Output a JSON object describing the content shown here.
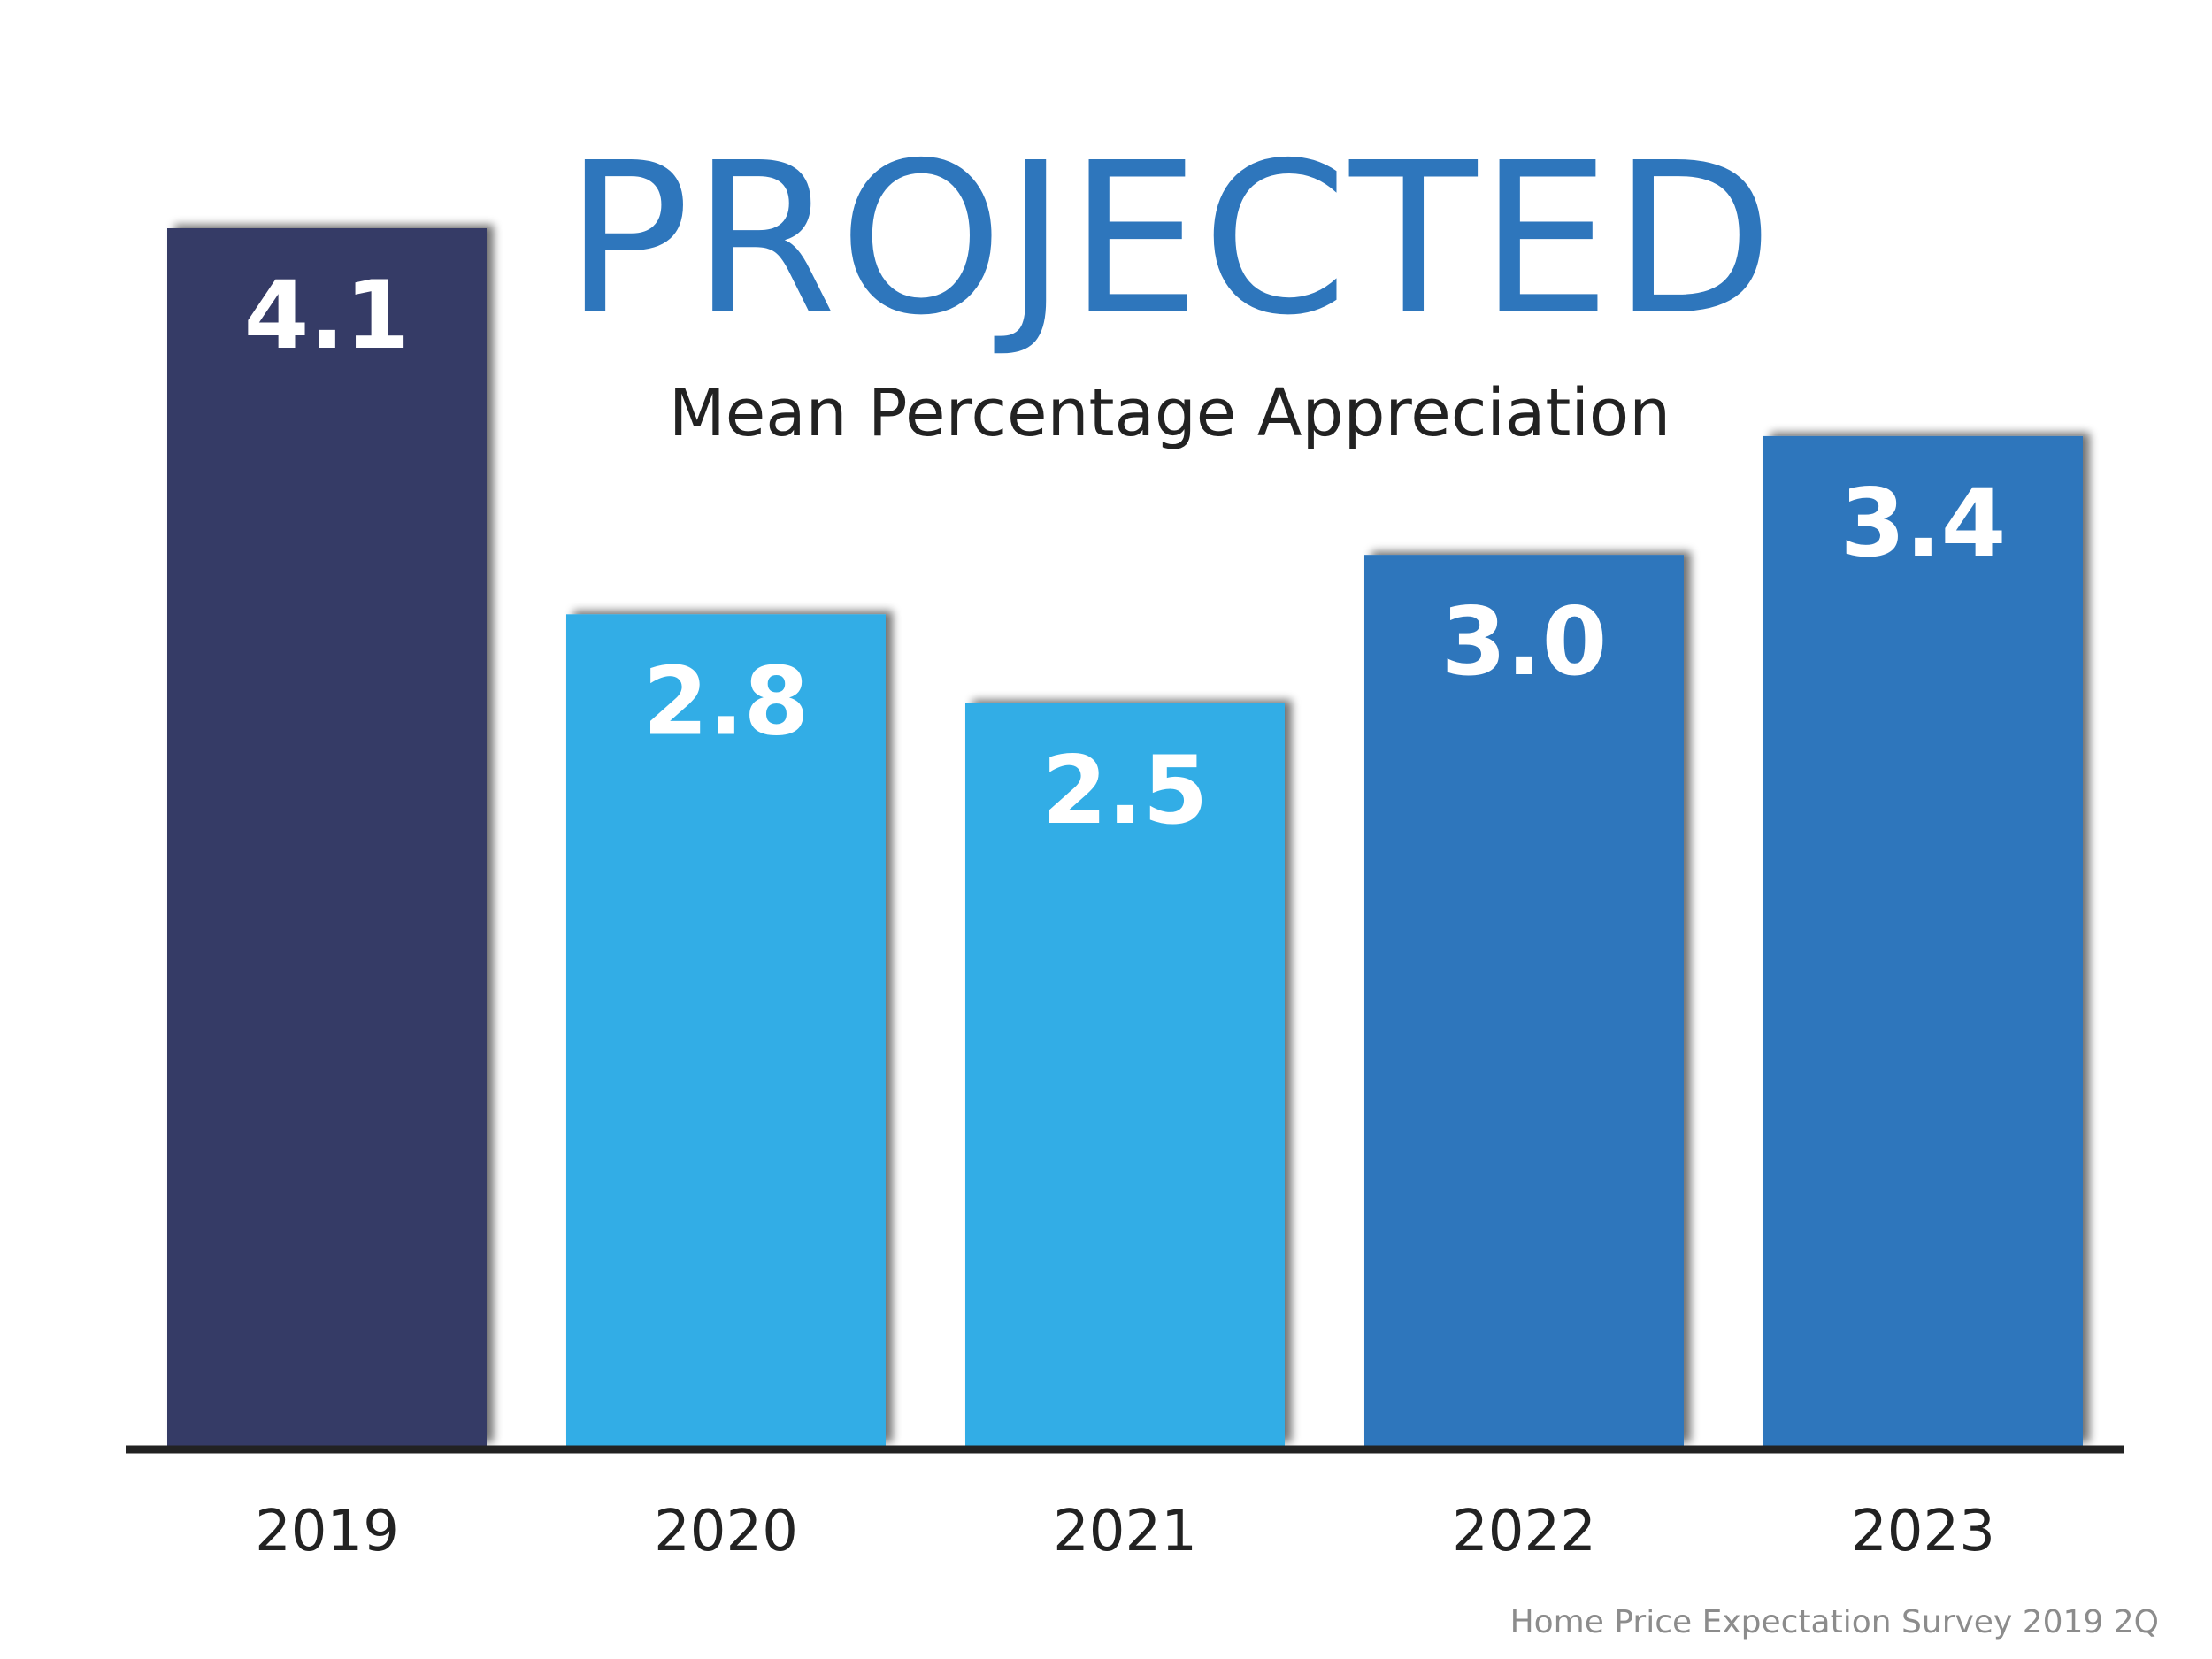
{
  "chart_data": {
    "type": "bar",
    "title": "PROJECTED",
    "subtitle": "Mean Percentage Appreciation",
    "categories": [
      "2019",
      "2020",
      "2021",
      "2022",
      "2023"
    ],
    "values": [
      4.1,
      2.8,
      2.5,
      3.0,
      3.4
    ],
    "value_labels": [
      "4.1",
      "2.8",
      "2.5",
      "3.0",
      "3.4"
    ],
    "bar_colors": [
      "#363b66",
      "#32ade6",
      "#32ade6",
      "#2e76bc",
      "#2e76bc"
    ],
    "ylim": [
      0,
      4.1
    ],
    "grid": false,
    "legend": "none",
    "source": "Home Price Expectation Survey 2019 2Q"
  },
  "colors": {
    "title": "#2e76bc",
    "subtitle": "#222222",
    "axis": "#222222",
    "value_label": "#ffffff",
    "tick_label": "#222222",
    "source": "#8c8c8c"
  }
}
